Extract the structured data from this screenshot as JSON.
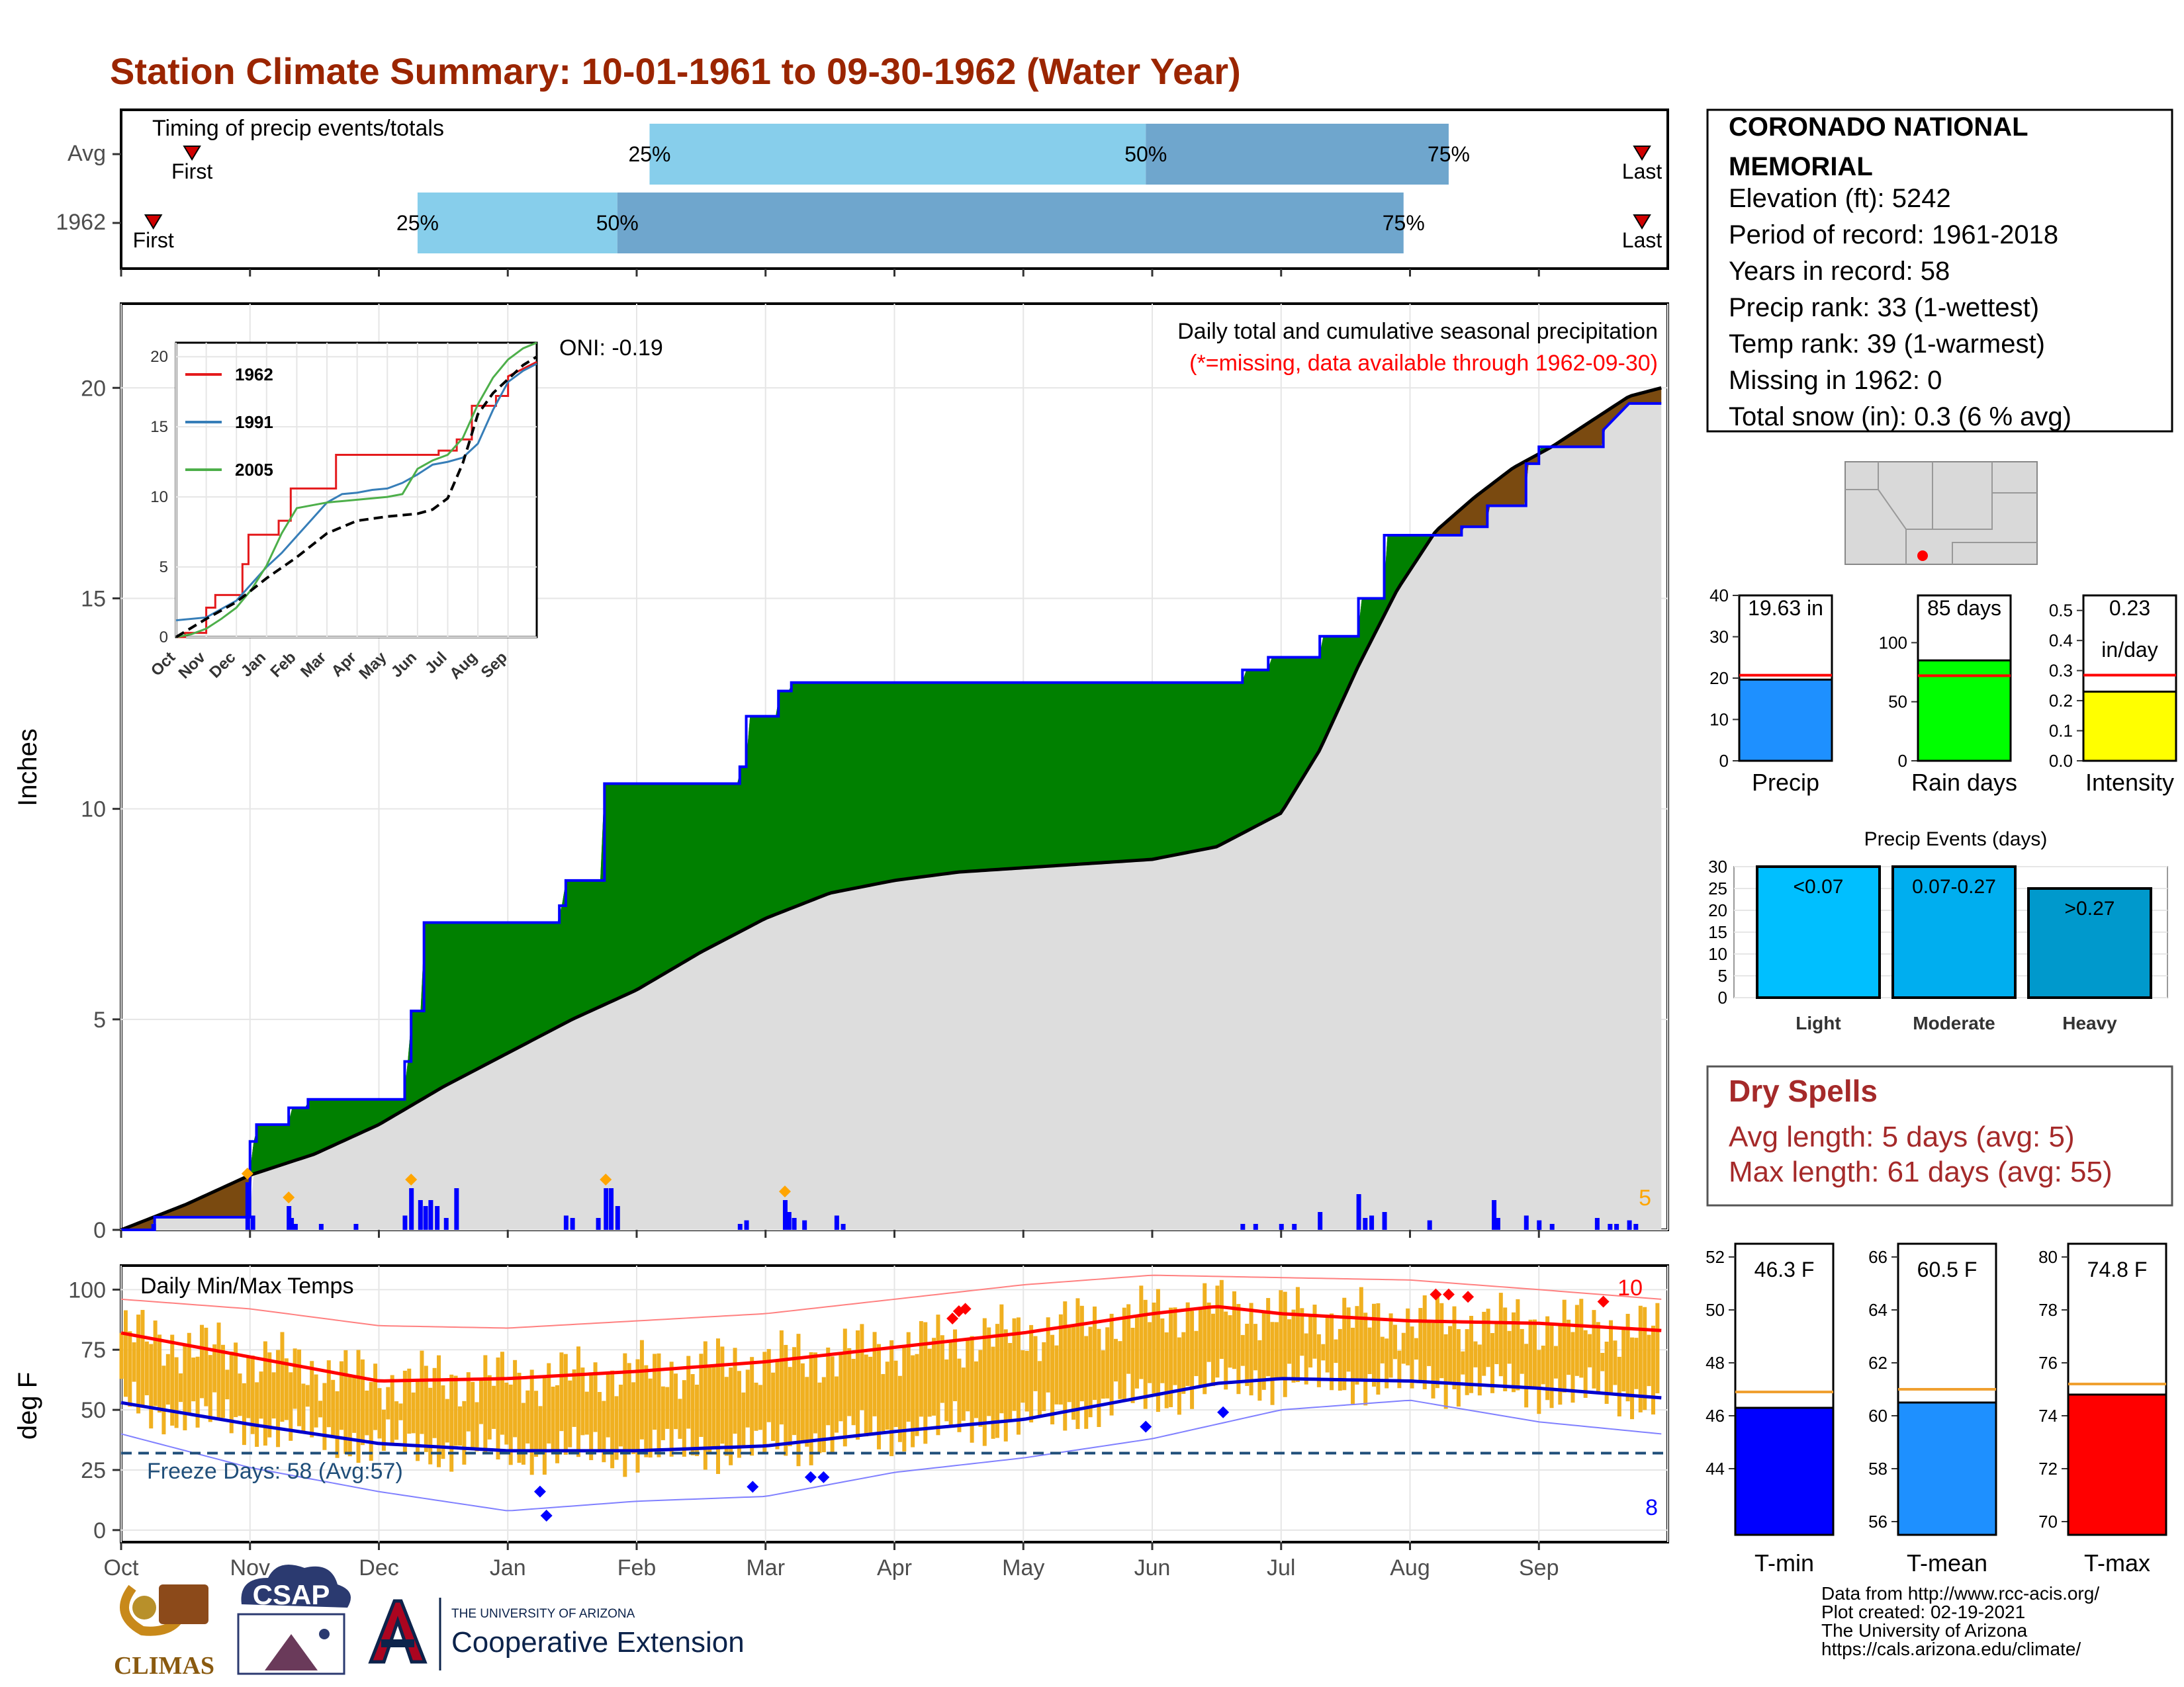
{
  "title": "Station Climate Summary: 10-01-1961 to 09-30-1962 (Water Year)",
  "colors": {
    "title": "#9b2500",
    "green": "#008000",
    "brown": "#7a4a10",
    "grey_fill": "#dddddd",
    "blue": "#0000ff",
    "light_blue": "#87ceeb",
    "mid_blue": "#6fa6cd",
    "orange": "#f0b020",
    "red": "#ff0000",
    "dry": "#a52a2a"
  },
  "timing": {
    "label": "Timing of precip events/totals",
    "rows": [
      {
        "name": "Avg",
        "first_label": "First",
        "last_label": "Last",
        "first_month": 0.55,
        "p25_month": 4.1,
        "p50_month": 7.95,
        "p75_month": 10.3,
        "last_month": 11.8,
        "p25_label": "25%",
        "p50_label": "50%",
        "p75_label": "75%"
      },
      {
        "name": "1962",
        "first_label": "First",
        "last_label": "Last",
        "first_month": 0.25,
        "p25_month": 2.3,
        "p50_month": 3.85,
        "p75_month": 9.95,
        "last_month": 11.8,
        "p25_label": "25%",
        "p50_label": "50%",
        "p75_label": "75%"
      }
    ]
  },
  "main_panel": {
    "ylabel": "Inches",
    "oni": "ONI: -0.19",
    "legend_title": "Daily total and cumulative seasonal precipitation",
    "missing_note": "(*=missing, data available through 1962-09-30)",
    "corner_count": "5"
  },
  "inset": {
    "series_names": [
      "1962",
      "1991",
      "2005"
    ],
    "month_labels": [
      "Oct",
      "Nov",
      "Dec",
      "Jan",
      "Feb",
      "Mar",
      "Apr",
      "May",
      "Jun",
      "Jul",
      "Aug",
      "Sep"
    ],
    "y_ticks": [
      "0",
      "5",
      "10",
      "15",
      "20"
    ]
  },
  "temp_panel": {
    "ylabel": "deg F",
    "label": "Daily Min/Max Temps",
    "freeze": "Freeze Days: 58 (Avg:57)",
    "count_hot": "10",
    "count_cold": "8"
  },
  "month_labels": [
    "Oct",
    "Nov",
    "Dec",
    "Jan",
    "Feb",
    "Mar",
    "Apr",
    "May",
    "Jun",
    "Jul",
    "Aug",
    "Sep"
  ],
  "station": {
    "name_line1": "CORONADO NATIONAL",
    "name_line2": "MEMORIAL",
    "elevation": "Elevation (ft): 5242",
    "period": "Period of record: 1961-2018",
    "years": "Years in record: 58",
    "precip_rank": "Precip rank: 33 (1-wettest)",
    "temp_rank": "Temp rank: 39 (1-warmest)",
    "missing": "Missing in 1962: 0",
    "snow": "Total snow (in): 0.3 (6 % avg)"
  },
  "mini_bars": [
    {
      "label": "Precip",
      "value_label": "19.63 in",
      "value_label2": "",
      "value": 19.63,
      "avg": 20.7,
      "max": 40,
      "ticks": [
        "0",
        "10",
        "20",
        "30",
        "40"
      ],
      "color": "#1e90ff"
    },
    {
      "label": "Rain days",
      "value_label": "85 days",
      "value_label2": "",
      "value": 85,
      "avg": 72,
      "max": 140,
      "ticks": [
        "0",
        "50",
        "100"
      ],
      "color": "#00ff00"
    },
    {
      "label": "Intensity",
      "value_label": "0.23",
      "value_label2": "in/day",
      "value": 0.23,
      "avg": 0.285,
      "max": 0.55,
      "ticks": [
        "0.0",
        "0.1",
        "0.2",
        "0.3",
        "0.4",
        "0.5"
      ],
      "color": "#ffff00"
    }
  ],
  "precip_events": {
    "title": "Precip Events (days)",
    "ticks": [
      "0",
      "5",
      "10",
      "15",
      "20",
      "25",
      "30"
    ],
    "categories": [
      "Light",
      "Moderate",
      "Heavy"
    ],
    "bin_labels": [
      "<0.07",
      "0.07-0.27",
      ">0.27"
    ],
    "values": [
      30,
      30,
      25
    ],
    "colors": [
      "#00bfff",
      "#00aeef",
      "#0099cc"
    ]
  },
  "dry_spells": {
    "title": "Dry Spells",
    "avg": "Avg length: 5 days (avg: 5)",
    "max": "Max length: 61 days (avg: 55)"
  },
  "temp_bars": [
    {
      "label": "T-min",
      "value_label": "46.3 F",
      "value": 46.3,
      "avg": 46.9,
      "min": 41.5,
      "max": 52.5,
      "ticks": [
        "44",
        "46",
        "48",
        "50",
        "52"
      ],
      "tickvals": [
        44,
        46,
        48,
        50,
        52
      ],
      "color": "#0000ff"
    },
    {
      "label": "T-mean",
      "value_label": "60.5 F",
      "value": 60.5,
      "avg": 61.0,
      "min": 55.5,
      "max": 66.5,
      "ticks": [
        "56",
        "58",
        "60",
        "62",
        "64",
        "66"
      ],
      "tickvals": [
        56,
        58,
        60,
        62,
        64,
        66
      ],
      "color": "#1e90ff"
    },
    {
      "label": "T-max",
      "value_label": "74.8 F",
      "value": 74.8,
      "avg": 75.2,
      "min": 69.5,
      "max": 80.5,
      "ticks": [
        "70",
        "72",
        "74",
        "76",
        "78",
        "80"
      ],
      "tickvals": [
        70,
        72,
        74,
        76,
        78,
        80
      ],
      "color": "#ff0000"
    }
  ],
  "footer": {
    "line1": "Data from http://www.rcc-acis.org/",
    "line2": "Plot created: 02-19-2021",
    "line3": "The University of Arizona",
    "line4": "https://cals.arizona.edu/climate/",
    "logo_climas": "CLIMAS",
    "logo_csap": "CSAP",
    "ua_small": "THE UNIVERSITY OF ARIZONA",
    "ua_big": "Cooperative Extension"
  },
  "chart_data": [
    {
      "type": "area",
      "title": "Daily total and cumulative seasonal precipitation",
      "ylabel": "Inches",
      "ylim": [
        0,
        22
      ],
      "x_unit": "month of water year (0 = Oct 1)",
      "cumulative_1962": {
        "x": [
          0,
          0.26,
          0.26,
          1.0,
          1.0,
          1.05,
          1.05,
          1.3,
          1.3,
          1.45,
          1.45,
          2.2,
          2.2,
          2.25,
          2.25,
          2.35,
          2.35,
          2.45,
          2.45,
          2.55,
          2.55,
          3.4,
          3.4,
          3.45,
          3.45,
          3.75,
          3.75,
          3.8,
          3.8,
          4.8,
          4.8,
          4.85,
          4.85,
          5.1,
          5.1,
          5.2,
          5.2,
          5.3,
          5.3,
          8.7,
          8.7,
          8.9,
          8.9,
          9.3,
          9.3,
          9.6,
          9.6,
          9.8,
          9.8,
          10.4,
          10.4,
          10.6,
          10.6,
          10.9,
          10.9,
          11.0,
          11.0,
          11.5,
          11.5,
          11.7,
          11.95
        ],
        "y": [
          0,
          0,
          0.3,
          0.3,
          2.1,
          2.1,
          2.5,
          2.5,
          2.9,
          2.9,
          3.1,
          3.1,
          4.0,
          4.0,
          5.2,
          5.2,
          7.3,
          7.3,
          7.3,
          7.3,
          7.3,
          7.3,
          7.7,
          7.7,
          8.3,
          8.3,
          10.6,
          10.6,
          10.6,
          10.6,
          11.0,
          11.0,
          12.2,
          12.2,
          12.8,
          12.8,
          13.0,
          13.0,
          13.0,
          13.0,
          13.3,
          13.3,
          13.6,
          13.6,
          14.1,
          14.1,
          15.0,
          15.0,
          16.5,
          16.5,
          16.7,
          16.7,
          17.2,
          17.2,
          18.2,
          18.2,
          18.6,
          18.6,
          19.0,
          19.63,
          19.63
        ]
      },
      "cumulative_avg": {
        "x": [
          0,
          0.5,
          1.0,
          1.5,
          2.0,
          2.5,
          3.0,
          3.5,
          4.0,
          4.5,
          5.0,
          5.5,
          6.0,
          6.5,
          7.0,
          7.5,
          8.0,
          8.5,
          9.0,
          9.3,
          9.6,
          9.9,
          10.2,
          10.5,
          10.8,
          11.1,
          11.4,
          11.7,
          11.95
        ],
        "y": [
          0,
          0.6,
          1.3,
          1.8,
          2.5,
          3.4,
          4.2,
          5.0,
          5.7,
          6.6,
          7.4,
          8.0,
          8.3,
          8.5,
          8.6,
          8.7,
          8.8,
          9.1,
          9.9,
          11.4,
          13.4,
          15.2,
          16.6,
          17.4,
          18.1,
          18.6,
          19.2,
          19.8,
          20.0
        ]
      },
      "daily_precip": {
        "x": [
          0.25,
          0.98,
          1.02,
          1.3,
          1.32,
          1.35,
          1.55,
          1.82,
          2.2,
          2.25,
          2.32,
          2.36,
          2.4,
          2.45,
          2.52,
          2.6,
          3.45,
          3.5,
          3.7,
          3.76,
          3.8,
          3.85,
          4.8,
          4.85,
          5.15,
          5.18,
          5.22,
          5.3,
          5.55,
          5.6,
          8.7,
          8.8,
          9.0,
          9.1,
          9.3,
          9.6,
          9.65,
          9.7,
          9.8,
          10.15,
          10.65,
          10.68,
          10.9,
          11.0,
          11.1,
          11.45,
          11.55,
          11.6,
          11.7,
          11.75
        ],
        "y": [
          0.05,
          0.4,
          0.12,
          0.2,
          0.1,
          0.05,
          0.05,
          0.05,
          0.12,
          0.35,
          0.25,
          0.2,
          0.25,
          0.2,
          0.1,
          0.35,
          0.12,
          0.1,
          0.1,
          0.35,
          0.35,
          0.2,
          0.05,
          0.08,
          0.25,
          0.15,
          0.1,
          0.08,
          0.12,
          0.05,
          0.05,
          0.05,
          0.05,
          0.05,
          0.15,
          0.3,
          0.1,
          0.12,
          0.15,
          0.08,
          0.25,
          0.1,
          0.12,
          0.08,
          0.05,
          0.1,
          0.05,
          0.05,
          0.08,
          0.05
        ]
      }
    },
    {
      "type": "line",
      "title": "",
      "ylim": [
        0,
        21
      ],
      "series": [
        {
          "name": "1962",
          "color": "#e41a1c",
          "x": [
            0,
            0.3,
            0.3,
            1.0,
            1.0,
            1.3,
            1.3,
            2.2,
            2.2,
            2.4,
            2.4,
            3.4,
            3.4,
            3.8,
            3.8,
            5.3,
            5.3,
            8.7,
            8.7,
            9.3,
            9.3,
            9.8,
            9.8,
            10.6,
            10.6,
            11.0,
            11.0,
            11.95
          ],
          "y": [
            0,
            0,
            0.3,
            0.3,
            2.1,
            2.1,
            3.0,
            3.0,
            5.2,
            5.2,
            7.3,
            7.3,
            8.3,
            8.3,
            10.6,
            10.6,
            13.0,
            13.0,
            13.3,
            13.3,
            14.1,
            14.1,
            16.5,
            16.5,
            17.2,
            17.2,
            18.6,
            19.63
          ]
        },
        {
          "name": "1991",
          "color": "#377eb8",
          "x": [
            0,
            1.0,
            1.5,
            2.0,
            2.5,
            3.0,
            3.5,
            4.0,
            4.5,
            5.0,
            5.5,
            6.0,
            6.5,
            7.0,
            7.5,
            8.0,
            8.5,
            9.0,
            9.5,
            10.0,
            10.5,
            11.0,
            11.5,
            11.95
          ],
          "y": [
            1.2,
            1.4,
            2.0,
            2.6,
            3.8,
            5.0,
            6.0,
            7.2,
            8.4,
            9.6,
            10.2,
            10.3,
            10.5,
            10.6,
            11.0,
            11.6,
            12.3,
            12.5,
            12.8,
            13.8,
            16.2,
            18.2,
            19.0,
            19.5
          ]
        },
        {
          "name": "2005",
          "color": "#4daf4a",
          "x": [
            0,
            0.5,
            1.0,
            1.5,
            2.0,
            2.5,
            3.0,
            3.5,
            4.0,
            4.5,
            5.0,
            5.5,
            6.0,
            6.5,
            7.0,
            7.5,
            8.0,
            8.5,
            9.0,
            9.5,
            10.0,
            10.5,
            11.0,
            11.5,
            11.95
          ],
          "y": [
            0,
            0.2,
            0.6,
            1.3,
            2.1,
            3.4,
            5.1,
            7.4,
            9.2,
            9.4,
            9.6,
            9.7,
            9.8,
            9.9,
            10.0,
            10.2,
            12.0,
            12.6,
            13.0,
            14.2,
            16.6,
            18.5,
            19.8,
            20.6,
            21.0
          ]
        },
        {
          "name": "Avg",
          "color": "#000000",
          "dashed": true,
          "x": [
            0,
            1.0,
            2.0,
            3.0,
            4.0,
            5.0,
            6.0,
            7.0,
            8.0,
            8.5,
            9.0,
            9.5,
            10.0,
            10.5,
            11.0,
            11.5,
            11.95
          ],
          "y": [
            0,
            1.3,
            2.5,
            4.2,
            5.7,
            7.4,
            8.3,
            8.6,
            8.8,
            9.1,
            9.9,
            12.4,
            15.9,
            17.4,
            18.4,
            19.4,
            20.0
          ]
        }
      ]
    },
    {
      "type": "bar",
      "title": "Daily Min/Max Temps",
      "ylabel": "deg F",
      "ylim": [
        -5,
        110
      ],
      "tmax_avg": {
        "x": [
          0,
          1,
          2,
          3,
          4,
          5,
          6,
          7,
          8,
          8.5,
          9,
          10,
          11,
          11.95
        ],
        "y": [
          82,
          72,
          62,
          63,
          66,
          70,
          76,
          82,
          90,
          93,
          90,
          87,
          86,
          83
        ]
      },
      "tmin_avg": {
        "x": [
          0,
          1,
          2,
          3,
          4,
          5,
          6,
          7,
          8,
          8.5,
          9,
          10,
          11,
          11.95
        ],
        "y": [
          53,
          44,
          36,
          33,
          33,
          35,
          41,
          46,
          56,
          61,
          63,
          62,
          59,
          55
        ]
      },
      "tmax_record": {
        "x": [
          0,
          1,
          2,
          3,
          4,
          5,
          6,
          7,
          8,
          9,
          10,
          11,
          11.95
        ],
        "y": [
          96,
          92,
          85,
          84,
          87,
          90,
          96,
          102,
          106,
          105,
          104,
          100,
          96
        ]
      },
      "tmin_record": {
        "x": [
          0,
          1,
          2,
          3,
          4,
          5,
          6,
          7,
          8,
          9,
          10,
          11,
          11.95
        ],
        "y": [
          40,
          26,
          16,
          8,
          12,
          14,
          24,
          30,
          38,
          50,
          54,
          45,
          40
        ]
      },
      "freeze_line": 32,
      "record_highs": {
        "x": [
          6.45,
          6.5,
          6.55,
          10.2,
          10.3,
          10.45,
          11.5
        ],
        "y": [
          88,
          91,
          92,
          98,
          98,
          97,
          95
        ]
      },
      "record_lows": {
        "x": [
          3.25,
          3.3,
          4.9,
          5.35,
          5.45,
          7.95,
          8.55
        ],
        "y": [
          16,
          6,
          18,
          22,
          22,
          43,
          49
        ]
      }
    }
  ]
}
